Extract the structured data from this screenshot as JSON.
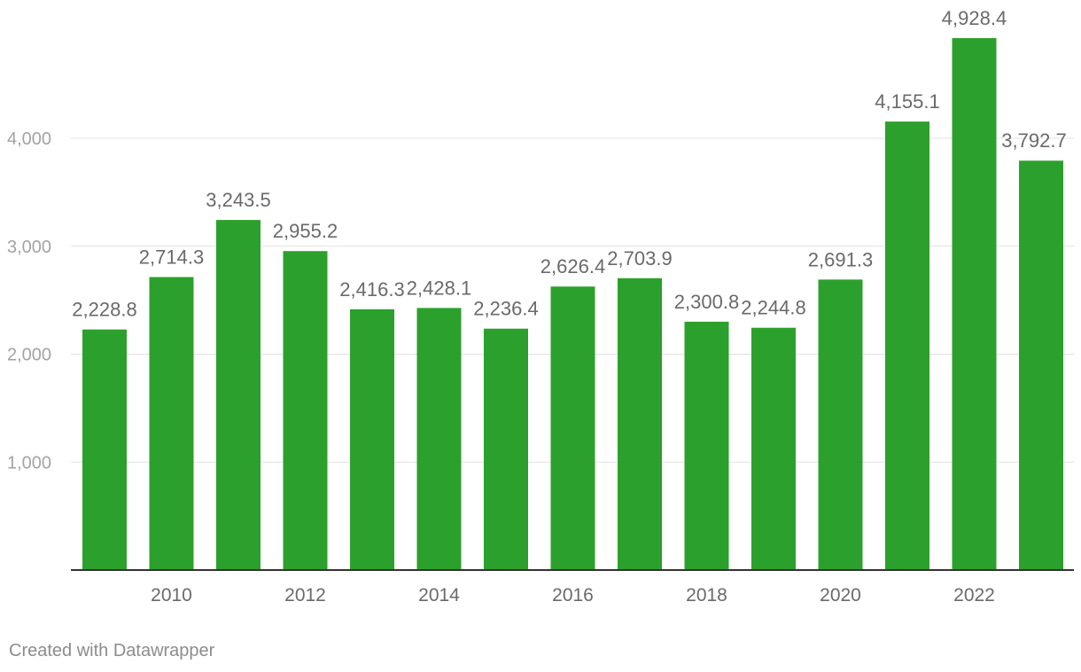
{
  "chart_data": {
    "type": "bar",
    "categories": [
      "2009",
      "2010",
      "2011",
      "2012",
      "2013",
      "2014",
      "2015",
      "2016",
      "2017",
      "2018",
      "2019",
      "2020",
      "2021",
      "2022",
      "2023"
    ],
    "values": [
      2228.8,
      2714.3,
      3243.5,
      2955.2,
      2416.3,
      2428.1,
      2236.4,
      2626.4,
      2703.9,
      2300.8,
      2244.8,
      2691.3,
      4155.1,
      4928.4,
      3792.7
    ],
    "value_labels": [
      "2,228.8",
      "2,714.3",
      "3,243.5",
      "2,955.2",
      "2,416.3",
      "2,428.1",
      "2,236.4",
      "2,626.4",
      "2,703.9",
      "2,300.8",
      "2,244.8",
      "2,691.3",
      "4,155.1",
      "4,928.4",
      "3,792.7"
    ],
    "x_tick_labels": [
      "2010",
      "2012",
      "2014",
      "2016",
      "2018",
      "2020",
      "2022"
    ],
    "y_ticks": [
      1000,
      2000,
      3000,
      4000
    ],
    "y_tick_labels": [
      "1,000",
      "2,000",
      "3,000",
      "4,000"
    ],
    "ylim": [
      0,
      5300
    ],
    "grid": true,
    "bar_color": "#2ca02c",
    "title": "",
    "xlabel": "",
    "ylabel": ""
  },
  "footer": {
    "credit": "Created with Datawrapper"
  }
}
